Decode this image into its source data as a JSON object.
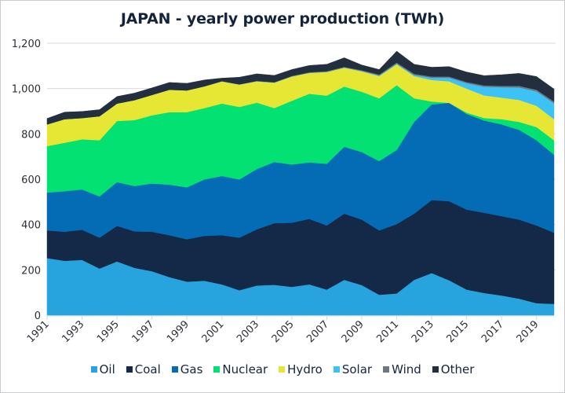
{
  "chart_data": {
    "type": "area",
    "stacked": true,
    "title": "JAPAN - yearly power production (TWh)",
    "xlabel": "",
    "ylabel": "",
    "ylim": [
      0,
      1200
    ],
    "yticks": [
      0,
      200,
      400,
      600,
      800,
      1000,
      1200
    ],
    "ytick_labels": [
      "0",
      "200",
      "400",
      "600",
      "800",
      "1,000",
      "1,200"
    ],
    "xlim": [
      1991,
      2020
    ],
    "xticks": [
      1991,
      1993,
      1995,
      1997,
      1999,
      2001,
      2003,
      2005,
      2007,
      2009,
      2011,
      2013,
      2015,
      2017,
      2019
    ],
    "xtick_labels": [
      "1991",
      "1993",
      "1995",
      "1997",
      "1999",
      "2001",
      "2003",
      "2005",
      "2007",
      "2009",
      "2011",
      "2013",
      "2015",
      "2017",
      "2019"
    ],
    "grid": "horizontal",
    "legend_position": "bottom",
    "x": [
      1991,
      1992,
      1993,
      1994,
      1995,
      1996,
      1997,
      1998,
      1999,
      2000,
      2001,
      2002,
      2003,
      2004,
      2005,
      2006,
      2007,
      2008,
      2009,
      2010,
      2011,
      2012,
      2013,
      2014,
      2015,
      2016,
      2017,
      2018,
      2019,
      2020
    ],
    "series": [
      {
        "name": "Oil",
        "color": "#27a4de",
        "values": [
          252,
          240,
          244,
          206,
          237,
          209,
          194,
          168,
          148,
          152,
          136,
          110,
          131,
          134,
          125,
          136,
          113,
          156,
          133,
          90,
          96,
          156,
          186,
          154,
          113,
          98,
          87,
          73,
          53,
          50
        ]
      },
      {
        "name": "Coal",
        "color": "#142947",
        "values": [
          122,
          128,
          133,
          136,
          157,
          161,
          174,
          185,
          187,
          198,
          217,
          232,
          248,
          272,
          283,
          289,
          283,
          292,
          289,
          284,
          306,
          292,
          322,
          349,
          353,
          354,
          350,
          349,
          343,
          314
        ]
      },
      {
        "name": "Gas",
        "color": "#046bb5",
        "values": [
          167,
          179,
          178,
          182,
          193,
          200,
          213,
          223,
          229,
          249,
          261,
          257,
          266,
          270,
          257,
          249,
          272,
          295,
          298,
          306,
          327,
          405,
          422,
          434,
          422,
          407,
          405,
          396,
          376,
          344
        ]
      },
      {
        "name": "Nuclear",
        "color": "#04e173",
        "values": [
          205,
          214,
          221,
          248,
          270,
          291,
          301,
          320,
          332,
          315,
          320,
          320,
          293,
          238,
          281,
          303,
          301,
          266,
          266,
          277,
          286,
          104,
          13,
          0,
          6,
          11,
          23,
          35,
          58,
          64
        ]
      },
      {
        "name": "Hydro",
        "color": "#e6e634",
        "values": [
          96,
          104,
          94,
          106,
          77,
          88,
          90,
          99,
          96,
          96,
          98,
          99,
          94,
          112,
          107,
          92,
          104,
          83,
          90,
          98,
          92,
          98,
          95,
          95,
          106,
          100,
          95,
          97,
          94,
          93
        ]
      },
      {
        "name": "Solar",
        "color": "#3cc2f6",
        "values": [
          0,
          0,
          0,
          0,
          0,
          0,
          0,
          0,
          0,
          0,
          0,
          0,
          1,
          1,
          1,
          1,
          1,
          1,
          2,
          3,
          3,
          5,
          10,
          16,
          24,
          38,
          46,
          55,
          64,
          70
        ]
      },
      {
        "name": "Wind",
        "color": "#6f7780",
        "values": [
          0,
          0,
          0,
          0,
          0,
          0,
          0,
          0,
          0,
          0,
          1,
          1,
          1,
          1,
          2,
          2,
          3,
          3,
          3,
          4,
          5,
          5,
          5,
          5,
          5,
          6,
          6,
          7,
          7,
          8
        ]
      },
      {
        "name": "Other",
        "color": "#232f3e",
        "values": [
          26,
          31,
          29,
          29,
          31,
          31,
          31,
          32,
          31,
          28,
          13,
          31,
          31,
          30,
          28,
          30,
          30,
          40,
          23,
          22,
          50,
          42,
          41,
          44,
          44,
          43,
          49,
          55,
          58,
          55
        ]
      }
    ]
  }
}
